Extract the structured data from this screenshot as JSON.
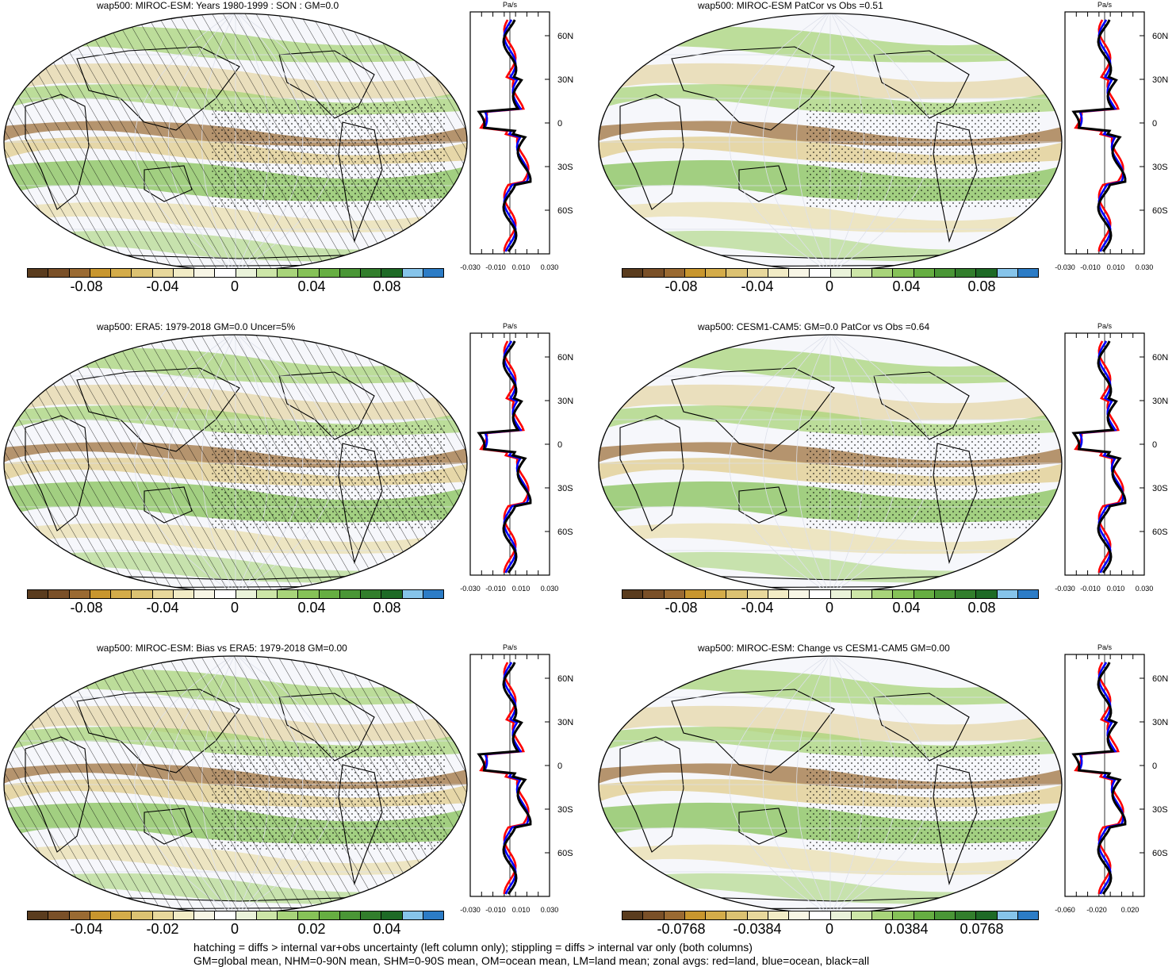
{
  "panels": [
    {
      "title": "wap500: MIROC-ESM: Years 1980-1999 : SON : GM=0.0",
      "hatch": true,
      "colorbar_labels": [
        "-0.08",
        "-0.04",
        "0",
        "0.04",
        "0.08"
      ],
      "zonal": {
        "unit": "Pa/s",
        "xticks": [
          "-0.030",
          "-0.010",
          "0.010",
          "0.030"
        ],
        "yticks": [
          "60N",
          "30N",
          "0",
          "30S",
          "60S"
        ]
      }
    },
    {
      "title": "wap500: MIROC-ESM PatCor vs Obs =0.51",
      "hatch": false,
      "colorbar_labels": [
        "-0.08",
        "-0.04",
        "0",
        "0.04",
        "0.08"
      ],
      "zonal": {
        "unit": "Pa/s",
        "xticks": [
          "-0.030",
          "-0.010",
          "0.010",
          "0.030"
        ],
        "yticks": [
          "60N",
          "30N",
          "0",
          "30S",
          "60S"
        ]
      }
    },
    {
      "title": "wap500: ERA5: 1979-2018 GM=0.0 Uncer=5%",
      "hatch": true,
      "colorbar_labels": [
        "-0.08",
        "-0.04",
        "0",
        "0.04",
        "0.08"
      ],
      "zonal": {
        "unit": "Pa/s",
        "xticks": [
          "-0.030",
          "-0.010",
          "0.010",
          "0.030"
        ],
        "yticks": [
          "60N",
          "30N",
          "0",
          "30S",
          "60S"
        ]
      }
    },
    {
      "title": "wap500: CESM1-CAM5: GM=0.0 PatCor vs Obs =0.64",
      "hatch": false,
      "colorbar_labels": [
        "-0.08",
        "-0.04",
        "0",
        "0.04",
        "0.08"
      ],
      "zonal": {
        "unit": "Pa/s",
        "xticks": [
          "-0.030",
          "-0.010",
          "0.010",
          "0.030"
        ],
        "yticks": [
          "60N",
          "30N",
          "0",
          "30S",
          "60S"
        ]
      }
    },
    {
      "title": "wap500: MIROC-ESM: Bias vs ERA5: 1979-2018  GM=0.00",
      "hatch": true,
      "colorbar_labels": [
        "-0.04",
        "-0.02",
        "0",
        "0.02",
        "0.04"
      ],
      "zonal": {
        "unit": "Pa/s",
        "xticks": [
          "-0.030",
          "-0.010",
          "0.010",
          "0.030"
        ],
        "yticks": [
          "60N",
          "30N",
          "0",
          "30S",
          "60S"
        ]
      }
    },
    {
      "title": "wap500: MIROC-ESM: Change vs CESM1-CAM5 GM=0.00",
      "hatch": false,
      "colorbar_labels": [
        "-0.0768",
        "-0.0384",
        "0",
        "0.0384",
        "0.0768"
      ],
      "zonal": {
        "unit": "Pa/s",
        "xticks": [
          "-0.060",
          "-0.020",
          "0.020"
        ],
        "yticks": [
          "60N",
          "30N",
          "0",
          "30S",
          "60S"
        ]
      }
    }
  ],
  "colorbar_colors": [
    "#5a3c1e",
    "#7a5028",
    "#9a6a32",
    "#c8962e",
    "#d4ac4a",
    "#dcc272",
    "#e8d89c",
    "#f2ecc6",
    "#f8f6e6",
    "#ffffff",
    "#eaf3da",
    "#cde6a8",
    "#a8d47a",
    "#86c258",
    "#66ae42",
    "#4a9636",
    "#327e2c",
    "#1e6a26",
    "#86c4ea",
    "#2c7cc6"
  ],
  "legend_colors": {
    "land": "#ff0000",
    "ocean": "#0000ff",
    "all": "#000000"
  },
  "footer": {
    "line1": "hatching = diffs > internal var+obs uncertainty (left column only); stippling = diffs > internal var only (both columns)",
    "line2": "GM=global mean, NHM=0-90N mean, SHM=0-90S mean, OM=ocean mean, LM=land mean; zonal avgs: red=land, blue=ocean, black=all"
  }
}
